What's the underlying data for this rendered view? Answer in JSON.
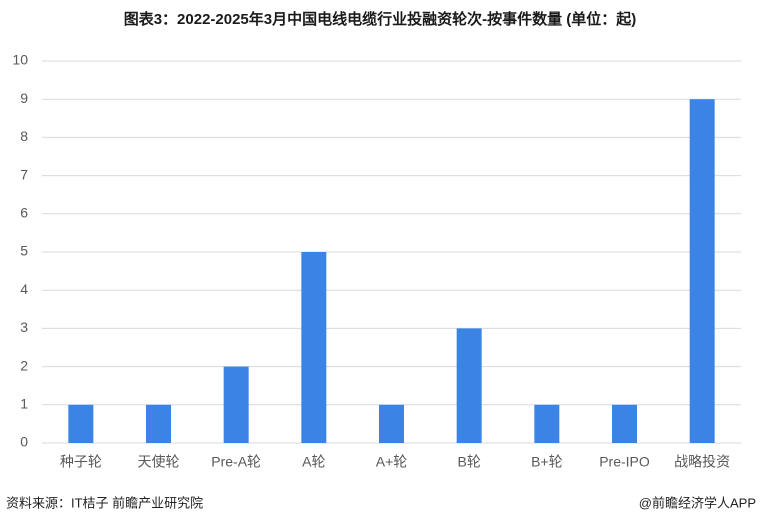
{
  "chart_data": {
    "type": "bar",
    "title": "图表3：2022-2025年3月中国电线电缆行业投融资轮次-按事件数量 (单位：起)",
    "categories": [
      "种子轮",
      "天使轮",
      "Pre-A轮",
      "A轮",
      "A+轮",
      "B轮",
      "B+轮",
      "Pre-IPO",
      "战略投资"
    ],
    "values": [
      1,
      1,
      2,
      5,
      1,
      3,
      1,
      1,
      9
    ],
    "color": "#3b84e6",
    "ylim": [
      0,
      10
    ],
    "yticks": [
      0,
      1,
      2,
      3,
      4,
      5,
      6,
      7,
      8,
      9,
      10
    ],
    "grid": true,
    "source": "资料来源：IT桔子 前瞻产业研究院",
    "credit": "@前瞻经济学人APP"
  }
}
